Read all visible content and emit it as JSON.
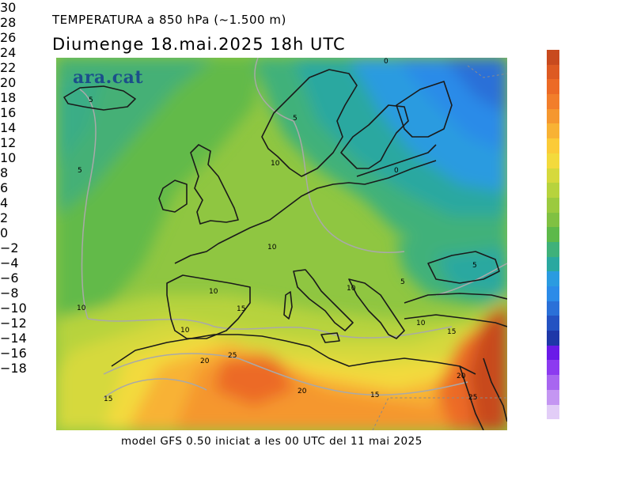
{
  "title_line1": "TEMPERATURA a 850 hPa (~1.500 m)",
  "title_line2": "Diumenge  18.mai.2025  18h UTC",
  "footer": "model GFS 0.50 iniciat a les 00 UTC del 11 mai 2025",
  "logo": "ara.cat",
  "legend": [
    {
      "label": "30",
      "color": "#c84a1e"
    },
    {
      "label": "28",
      "color": "#dd5a22"
    },
    {
      "label": "26",
      "color": "#ec6a26"
    },
    {
      "label": "24",
      "color": "#f27e2b"
    },
    {
      "label": "22",
      "color": "#f5972f"
    },
    {
      "label": "20",
      "color": "#f8b234"
    },
    {
      "label": "18",
      "color": "#fbcb38"
    },
    {
      "label": "16",
      "color": "#f3da3c"
    },
    {
      "label": "14",
      "color": "#d6d93c"
    },
    {
      "label": "12",
      "color": "#b7d33d"
    },
    {
      "label": "10",
      "color": "#9bca3f"
    },
    {
      "label": "8",
      "color": "#80c142"
    },
    {
      "label": "6",
      "color": "#5db94a"
    },
    {
      "label": "4",
      "color": "#3fb17a"
    },
    {
      "label": "2",
      "color": "#2aa8a0"
    },
    {
      "label": "0",
      "color": "#2a9be0"
    },
    {
      "label": "−2",
      "color": "#2b8be8"
    },
    {
      "label": "−4",
      "color": "#2a70d8"
    },
    {
      "label": "−6",
      "color": "#2452c2"
    },
    {
      "label": "−8",
      "color": "#1e37a8"
    },
    {
      "label": "−10",
      "color": "#6a1ae8"
    },
    {
      "label": "−12",
      "color": "#8c3af0"
    },
    {
      "label": "−14",
      "color": "#a866f0"
    },
    {
      "label": "−16",
      "color": "#c496f2"
    },
    {
      "label": "−18",
      "color": "#e2cdf7"
    }
  ],
  "contour_labels": [
    {
      "text": "0"
    },
    {
      "text": "5"
    },
    {
      "text": "5"
    },
    {
      "text": "10"
    },
    {
      "text": "5"
    },
    {
      "text": "0"
    },
    {
      "text": "10"
    },
    {
      "text": "10"
    },
    {
      "text": "10"
    },
    {
      "text": "5"
    },
    {
      "text": "5"
    },
    {
      "text": "10"
    },
    {
      "text": "15"
    },
    {
      "text": "10"
    },
    {
      "text": "10"
    },
    {
      "text": "15"
    },
    {
      "text": "20"
    },
    {
      "text": "25"
    },
    {
      "text": "20"
    },
    {
      "text": "15"
    },
    {
      "text": "20"
    },
    {
      "text": "15"
    },
    {
      "text": "25"
    }
  ]
}
